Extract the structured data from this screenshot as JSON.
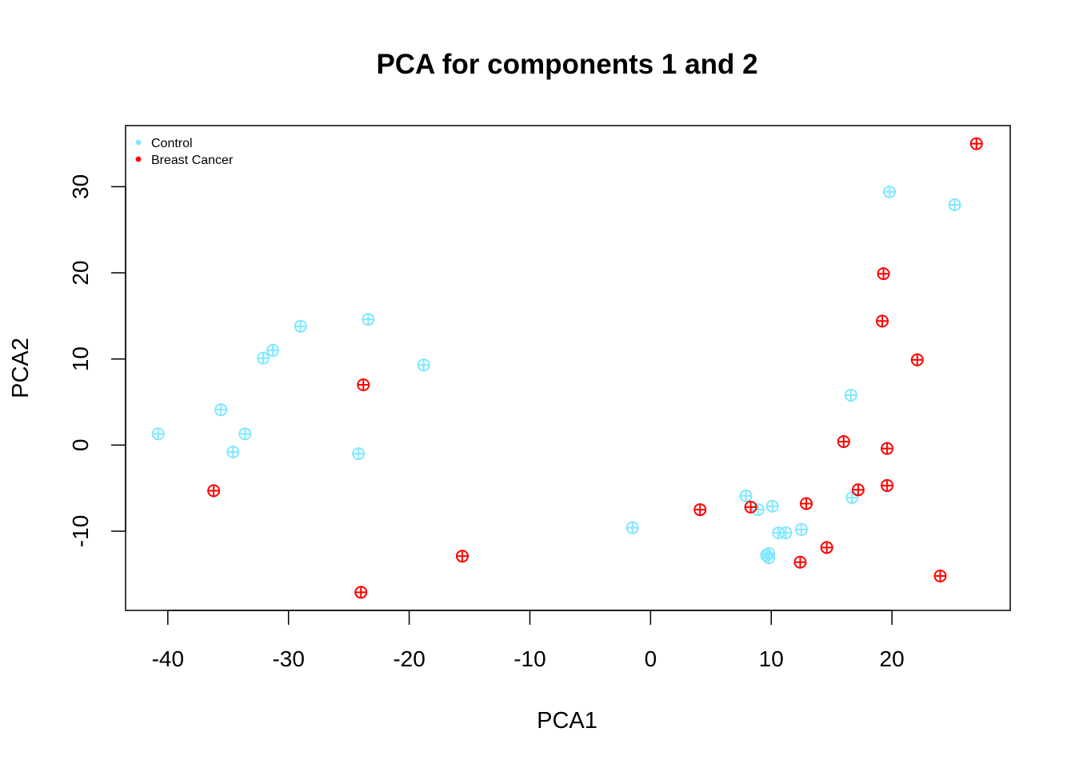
{
  "chart_data": {
    "type": "scatter",
    "title": "PCA for components 1 and 2",
    "xlabel": "PCA1",
    "ylabel": "PCA2",
    "xlim": [
      -43.5,
      29.8
    ],
    "ylim": [
      -19.2,
      37.1
    ],
    "xticks": [
      -40,
      -30,
      -20,
      -10,
      0,
      10,
      20
    ],
    "yticks": [
      -10,
      0,
      10,
      20,
      30
    ],
    "grid": false,
    "legend_position": "top-left",
    "marker": "circle-plus",
    "series": [
      {
        "name": "Control",
        "color": "#7fe8ff",
        "points": [
          [
            -40.8,
            1.3
          ],
          [
            -35.6,
            4.1
          ],
          [
            -33.6,
            1.3
          ],
          [
            -34.6,
            -0.8
          ],
          [
            -32.1,
            10.1
          ],
          [
            -31.3,
            11.0
          ],
          [
            -29.0,
            13.8
          ],
          [
            -23.4,
            14.6
          ],
          [
            -24.2,
            -1.0
          ],
          [
            -18.8,
            9.3
          ],
          [
            -1.5,
            -9.6
          ],
          [
            7.9,
            -5.9
          ],
          [
            8.9,
            -7.5
          ],
          [
            10.1,
            -7.1
          ],
          [
            10.6,
            -10.2
          ],
          [
            11.2,
            -10.2
          ],
          [
            12.5,
            -9.8
          ],
          [
            9.6,
            -12.8
          ],
          [
            9.8,
            -12.6
          ],
          [
            9.8,
            -13.1
          ],
          [
            16.6,
            5.8
          ],
          [
            16.7,
            -6.1
          ],
          [
            19.8,
            29.4
          ],
          [
            25.2,
            27.9
          ]
        ]
      },
      {
        "name": "Breast Cancer",
        "color": "#ff0000",
        "points": [
          [
            -36.2,
            -5.3
          ],
          [
            -23.8,
            7.0
          ],
          [
            -15.6,
            -12.9
          ],
          [
            -24.0,
            -17.1
          ],
          [
            4.1,
            -7.5
          ],
          [
            8.3,
            -7.2
          ],
          [
            12.9,
            -6.8
          ],
          [
            14.6,
            -11.9
          ],
          [
            12.4,
            -13.6
          ],
          [
            16.0,
            0.4
          ],
          [
            17.2,
            -5.2
          ],
          [
            19.6,
            -0.4
          ],
          [
            19.6,
            -4.7
          ],
          [
            19.3,
            19.9
          ],
          [
            19.2,
            14.4
          ],
          [
            22.1,
            9.9
          ],
          [
            24.0,
            -15.2
          ],
          [
            27.0,
            35.0
          ]
        ]
      }
    ]
  }
}
